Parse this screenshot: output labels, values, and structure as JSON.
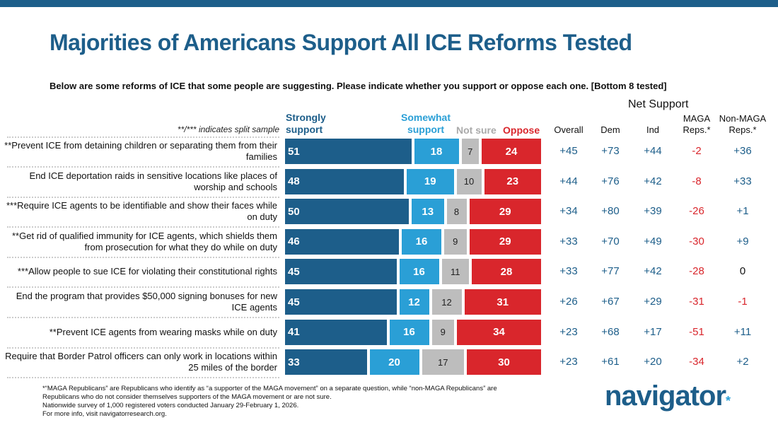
{
  "header": {
    "title": "Majorities of Americans Support All ICE Reforms Tested",
    "question": "Below are some reforms of ICE that some people are suggesting. Please indicate whether you support or oppose each one. [Bottom 8 tested]",
    "split_note": "**/*** indicates split sample"
  },
  "net_support": {
    "title": "Net Support",
    "columns": [
      "Overall",
      "Dem",
      "Ind",
      "MAGA Reps.*",
      "Non-MAGA Reps.*"
    ]
  },
  "colors": {
    "strongly": "#1d5e8a",
    "somewhat": "#2a9fd6",
    "not_sure": "#bdbdbd",
    "oppose": "#d9262c",
    "positive": "#1d5e8a",
    "negative": "#d9262c",
    "zero": "#111111"
  },
  "chart_data": {
    "type": "bar",
    "stacked": true,
    "orientation": "horizontal",
    "title": "Majorities of Americans Support All ICE Reforms Tested",
    "series_names": [
      "Strongly support",
      "Somewhat support",
      "Not sure",
      "Oppose"
    ],
    "categories": [
      "**Prevent ICE from detaining children or separating them from their families",
      "End ICE deportation raids in sensitive locations like places of worship and schools",
      "***Require ICE agents to be identifiable and show their faces while on duty",
      "**Get rid of qualified immunity for ICE agents, which shields them from prosecution for what they do while on duty",
      "***Allow people to sue ICE for violating their constitutional rights",
      "End the program that provides $50,000 signing bonuses for new ICE agents",
      "**Prevent ICE agents from wearing masks while on duty",
      "Require that Border Patrol officers can only work in locations within 25 miles of the border"
    ],
    "series": [
      {
        "name": "Strongly support",
        "values": [
          51,
          48,
          50,
          46,
          45,
          45,
          41,
          33
        ]
      },
      {
        "name": "Somewhat support",
        "values": [
          18,
          19,
          13,
          16,
          16,
          12,
          16,
          20
        ]
      },
      {
        "name": "Not sure",
        "values": [
          7,
          10,
          8,
          9,
          11,
          12,
          9,
          17
        ]
      },
      {
        "name": "Oppose",
        "values": [
          24,
          23,
          29,
          29,
          28,
          31,
          34,
          30
        ]
      }
    ],
    "net": [
      [
        "+45",
        "+73",
        "+44",
        "-2",
        "+36"
      ],
      [
        "+44",
        "+76",
        "+42",
        "-8",
        "+33"
      ],
      [
        "+34",
        "+80",
        "+39",
        "-26",
        "+1"
      ],
      [
        "+33",
        "+70",
        "+49",
        "-30",
        "+9"
      ],
      [
        "+33",
        "+77",
        "+42",
        "-28",
        "0"
      ],
      [
        "+26",
        "+67",
        "+29",
        "-31",
        "-1"
      ],
      [
        "+23",
        "+68",
        "+17",
        "-51",
        "+11"
      ],
      [
        "+23",
        "+61",
        "+20",
        "-34",
        "+2"
      ]
    ],
    "xlim": [
      0,
      100
    ]
  },
  "footer": {
    "lines": [
      "*“MAGA Republicans” are Republicans who identify as “a supporter of the MAGA movement” on a separate question, while “non-MAGA Republicans” are",
      "Republicans who do not consider themselves supporters of the MAGA movement or are not sure.",
      "Nationwide survey of 1,000 registered voters conducted January 29-February 1, 2026.",
      "For more info, visit navigatorresearch.org."
    ],
    "logo": "navigator"
  }
}
